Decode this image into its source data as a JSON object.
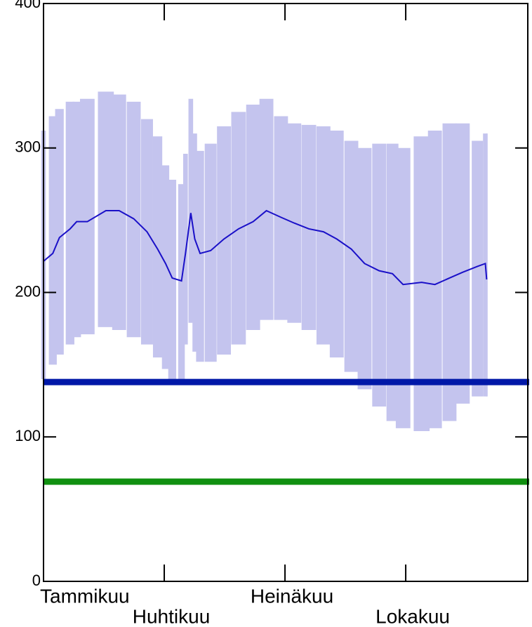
{
  "chart_data": {
    "type": "range_line",
    "x": [
      0,
      7,
      12,
      20,
      25,
      33,
      47,
      57,
      68,
      78,
      86,
      92,
      97,
      104,
      107,
      111,
      114,
      118,
      126,
      136,
      147,
      158,
      168,
      179,
      189,
      200,
      211,
      221,
      232,
      242,
      253,
      263,
      271,
      285,
      295,
      306,
      316,
      327,
      333,
      334
    ],
    "mean": [
      221.6,
      227,
      238,
      244,
      249,
      249,
      256.6,
      256.6,
      251,
      242,
      230,
      220,
      210,
      208,
      227,
      255,
      237,
      227,
      229,
      237,
      244,
      249,
      256.6,
      252,
      248,
      244,
      242,
      237,
      230,
      220,
      215,
      213,
      205.5,
      207,
      205.5,
      210,
      214,
      218,
      220,
      209
    ],
    "low": [
      140,
      150,
      157,
      164,
      169,
      171,
      176,
      174,
      169,
      164,
      155,
      147,
      140,
      140,
      164,
      179,
      159,
      152,
      152,
      157,
      164,
      174,
      181,
      181,
      179,
      174,
      164,
      155,
      145,
      133,
      121,
      111,
      106,
      104,
      106,
      111,
      123,
      128,
      128,
      128
    ],
    "high": [
      312,
      322,
      327,
      332,
      332,
      334,
      339,
      337,
      332,
      320,
      308,
      288,
      278,
      275,
      296,
      334,
      310,
      298,
      303,
      315,
      325,
      330,
      334,
      322,
      317,
      316,
      315,
      312,
      305,
      300,
      303,
      303,
      300,
      308,
      312,
      317,
      317,
      305,
      310,
      310
    ],
    "line_color": "#1a10c8",
    "band_color": "#c4c4ee",
    "hlines": [
      {
        "value": 138,
        "color": "#0018a8"
      },
      {
        "value": 69,
        "color": "#109010"
      }
    ],
    "xlim": [
      0,
      365
    ],
    "xticks": [
      {
        "value": 0,
        "label": "Tammikuu"
      },
      {
        "value": 91,
        "label": "Huhtikuu"
      },
      {
        "value": 182,
        "label": "Heinäkuu"
      },
      {
        "value": 273,
        "label": "Lokakuu"
      }
    ],
    "ylim": [
      0,
      400
    ],
    "yticks": [
      0,
      100,
      200,
      300,
      400
    ]
  }
}
